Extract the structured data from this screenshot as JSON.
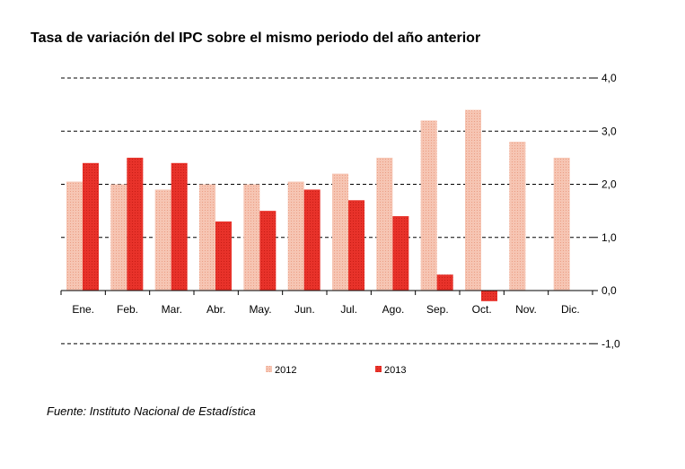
{
  "chart_data": {
    "type": "bar",
    "title": "Tasa de variación del IPC sobre el mismo periodo del año anterior",
    "categories": [
      "Ene.",
      "Feb.",
      "Mar.",
      "Abr.",
      "May.",
      "Jun.",
      "Jul.",
      "Ago.",
      "Sep.",
      "Oct.",
      "Nov.",
      "Dic."
    ],
    "series": [
      {
        "name": "2012",
        "values": [
          2.05,
          2.0,
          1.9,
          2.0,
          2.0,
          2.05,
          2.2,
          2.5,
          3.2,
          3.4,
          2.8,
          2.5
        ],
        "color": "#f4b8a2"
      },
      {
        "name": "2013",
        "values": [
          2.4,
          2.5,
          2.4,
          1.3,
          1.5,
          1.9,
          1.7,
          1.4,
          0.3,
          -0.2,
          null,
          null
        ],
        "color": "#e02a20"
      }
    ],
    "ylim": [
      -1.0,
      4.0
    ],
    "yticks": [
      "4,0",
      "3,0",
      "2,0",
      "1,0",
      "0,0",
      "-1,0"
    ],
    "ytick_values": [
      4,
      3,
      2,
      1,
      0,
      -1
    ],
    "grid": "dashed-horizontal",
    "legend_position": "bottom",
    "xlabel": "",
    "ylabel": ""
  },
  "source": "Fuente: Instituto Nacional de Estadística"
}
